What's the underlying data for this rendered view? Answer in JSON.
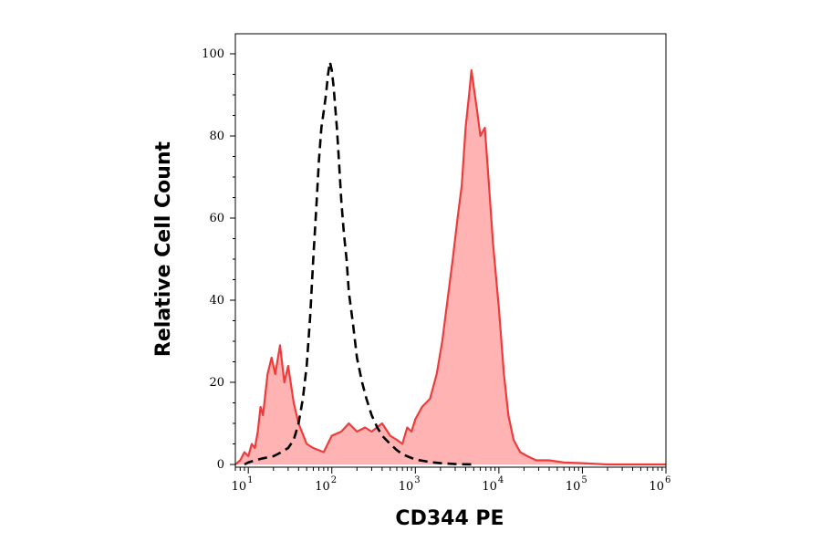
{
  "chart_data": {
    "type": "area",
    "xlabel": "CD344 PE",
    "ylabel": "Relative Cell Count",
    "x_scale": "log",
    "xlim": [
      7,
      1000000
    ],
    "ylim": [
      0,
      100
    ],
    "x_ticks": [
      {
        "value": 10,
        "base": "10",
        "exp": "1"
      },
      {
        "value": 100,
        "base": "10",
        "exp": "2"
      },
      {
        "value": 1000,
        "base": "10",
        "exp": "3"
      },
      {
        "value": 10000,
        "base": "10",
        "exp": "4"
      },
      {
        "value": 100000,
        "base": "10",
        "exp": "5"
      },
      {
        "value": 1000000,
        "base": "10",
        "exp": "6"
      }
    ],
    "y_ticks": [
      0,
      20,
      40,
      60,
      80,
      100
    ],
    "grid": false,
    "legend": "none",
    "series": [
      {
        "style": "filled-area",
        "color": "#ee3b3b",
        "fill": "#ffb3b3",
        "x": [
          7,
          8,
          9,
          10,
          11,
          12,
          13,
          14,
          15,
          17,
          19,
          21,
          24,
          27,
          30,
          35,
          40,
          50,
          60,
          80,
          100,
          130,
          160,
          200,
          250,
          300,
          400,
          500,
          600,
          700,
          800,
          900,
          1000,
          1200,
          1500,
          1800,
          2100,
          2500,
          2800,
          3200,
          3600,
          4000,
          4400,
          4700,
          5000,
          5500,
          6000,
          6800,
          7500,
          8500,
          10000,
          11500,
          13000,
          15000,
          18000,
          22000,
          28000,
          40000,
          60000,
          100000,
          200000,
          500000,
          1000000
        ],
        "y": [
          0,
          1,
          3,
          2,
          5,
          4,
          8,
          14,
          12,
          22,
          26,
          22,
          29,
          20,
          24,
          15,
          10,
          5,
          4,
          3,
          7,
          8,
          10,
          8,
          9,
          8,
          10,
          7,
          6,
          5,
          9,
          8,
          11,
          14,
          16,
          22,
          30,
          42,
          50,
          60,
          68,
          82,
          90,
          96,
          92,
          86,
          80,
          82,
          70,
          54,
          38,
          22,
          12,
          6,
          3,
          2,
          1,
          1,
          0.5,
          0.3,
          0,
          0,
          0
        ]
      },
      {
        "style": "dashed-line",
        "color": "#000000",
        "x": [
          9,
          10,
          12,
          15,
          20,
          25,
          30,
          35,
          40,
          45,
          50,
          55,
          60,
          65,
          70,
          75,
          80,
          85,
          90,
          95,
          100,
          105,
          110,
          115,
          120,
          125,
          130,
          140,
          150,
          160,
          180,
          200,
          230,
          260,
          300,
          350,
          400,
          500,
          600,
          700,
          800,
          1000,
          1300,
          1600,
          2000,
          3000,
          5000
        ],
        "y": [
          0,
          0.5,
          1,
          1.5,
          2,
          3,
          4,
          6,
          10,
          16,
          24,
          36,
          50,
          62,
          74,
          82,
          86,
          90,
          95,
          98,
          96,
          92,
          87,
          82,
          76,
          70,
          64,
          56,
          50,
          42,
          34,
          26,
          20,
          16,
          12,
          9,
          7,
          5,
          3.5,
          2.5,
          2,
          1.2,
          0.8,
          0.5,
          0.3,
          0.1,
          0
        ]
      }
    ]
  }
}
